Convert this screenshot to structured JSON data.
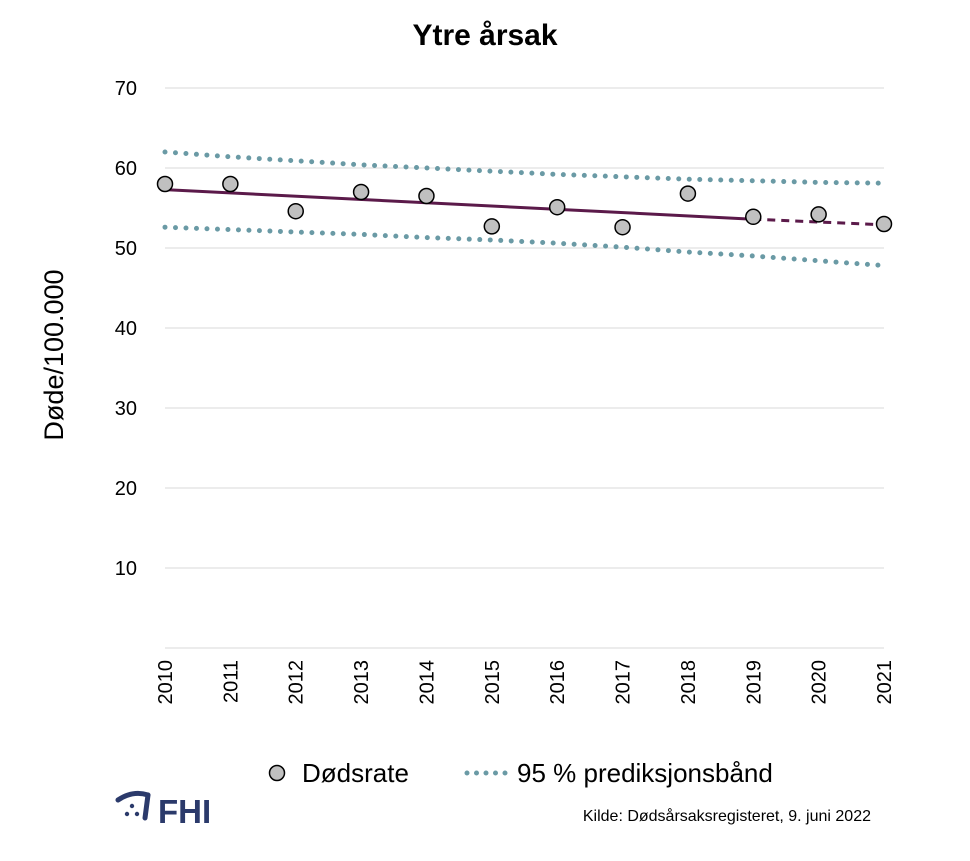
{
  "chart_data": {
    "type": "scatter",
    "title": "Ytre årsak",
    "ylabel": "Døde/100.000",
    "xlabel": "",
    "ylim": [
      0,
      70
    ],
    "yticks": [
      10,
      20,
      30,
      40,
      50,
      60,
      70
    ],
    "x": [
      "2010",
      "2011",
      "2012",
      "2013",
      "2014",
      "2015",
      "2016",
      "2017",
      "2018",
      "2019",
      "2020",
      "2021"
    ],
    "series": [
      {
        "name": "Dødsrate",
        "kind": "points",
        "x": [
          "2010",
          "2011",
          "2012",
          "2013",
          "2014",
          "2015",
          "2016",
          "2017",
          "2018",
          "2019",
          "2020",
          "2021"
        ],
        "values": [
          58.0,
          58.0,
          54.6,
          57.0,
          56.5,
          52.7,
          55.1,
          52.6,
          56.8,
          53.9,
          54.2,
          53.0
        ]
      },
      {
        "kind": "trend",
        "x": [
          "2010",
          "2019"
        ],
        "values": [
          57.3,
          53.6
        ]
      },
      {
        "kind": "trend-projection",
        "x": [
          "2019",
          "2021"
        ],
        "values": [
          53.6,
          52.9
        ]
      },
      {
        "name": "95 % prediksjonsbånd",
        "kind": "band-upper",
        "x": [
          "2010",
          "2011",
          "2012",
          "2013",
          "2014",
          "2015",
          "2016",
          "2017",
          "2018",
          "2019",
          "2020",
          "2021"
        ],
        "values": [
          62.0,
          61.4,
          60.9,
          60.4,
          60.0,
          59.6,
          59.2,
          58.9,
          58.6,
          58.4,
          58.2,
          58.1
        ]
      },
      {
        "name": "95 % prediksjonsbånd",
        "kind": "band-lower",
        "x": [
          "2010",
          "2011",
          "2012",
          "2013",
          "2014",
          "2015",
          "2016",
          "2017",
          "2018",
          "2019",
          "2020",
          "2021"
        ],
        "values": [
          52.6,
          52.3,
          52.0,
          51.7,
          51.3,
          51.0,
          50.6,
          50.1,
          49.5,
          49.0,
          48.4,
          47.8
        ]
      }
    ],
    "legend": {
      "position": "bottom",
      "entries": [
        "Dødsrate",
        "95 % prediksjonsbånd"
      ]
    },
    "grid": true,
    "colors": {
      "points_fill": "#c0c0c0",
      "points_stroke": "#000000",
      "trend": "#5b1a4a",
      "band": "#6a9aa5",
      "grid": "#d9d9d9"
    }
  },
  "footer": {
    "logo_text": "FHI",
    "source": "Kilde: Dødsårsaksregisteret, 9. juni 2022"
  }
}
